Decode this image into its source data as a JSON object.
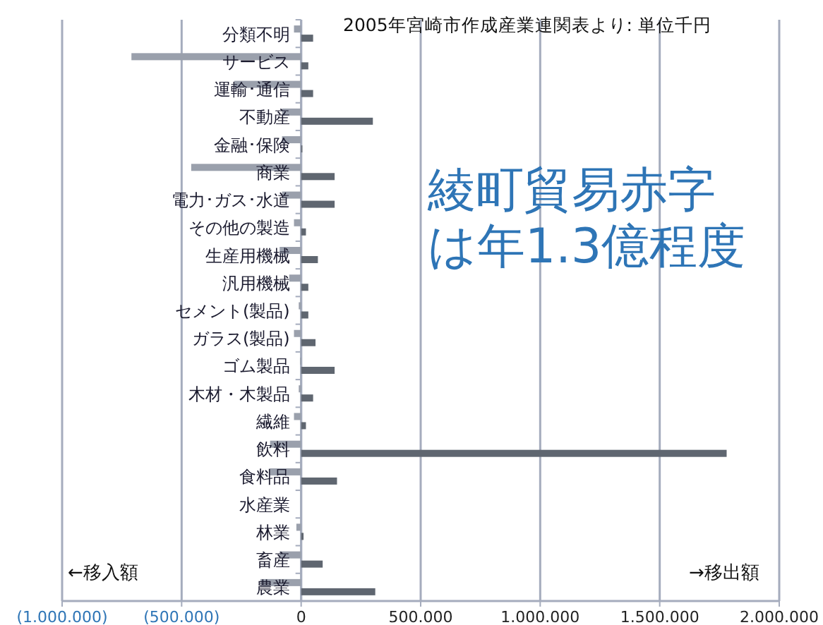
{
  "chart_data": {
    "type": "bar",
    "orientation": "horizontal",
    "title": "2005年宮崎市作成産業連関表より: 単位千円",
    "categories": [
      "分類不明",
      "サービス",
      "運輸･通信",
      "不動産",
      "金融･保険",
      "商業",
      "電力･ガス･水道",
      "その他の製造",
      "生産用機械",
      "汎用機械",
      "セメント(製品)",
      "ガラス(製品)",
      "ゴム製品",
      "木材・木製品",
      "繊維",
      "飲料",
      "食料品",
      "水産業",
      "林業",
      "畜産",
      "農業"
    ],
    "series": [
      {
        "color": "#9aa0ac",
        "values": [
          -30000,
          -710000,
          -280000,
          -80000,
          -80000,
          -460000,
          -80000,
          -30000,
          -90000,
          -50000,
          -10000,
          -30000,
          -5000,
          -10000,
          -30000,
          -130000,
          -130000,
          0,
          -20000,
          -90000,
          -170000
        ]
      },
      {
        "color": "#5f6670",
        "values": [
          50000,
          30000,
          50000,
          300000,
          5000,
          140000,
          140000,
          20000,
          70000,
          30000,
          30000,
          60000,
          140000,
          50000,
          20000,
          1780000,
          150000,
          0,
          10000,
          90000,
          310000
        ]
      }
    ],
    "xlim": [
      -1000000,
      2000000
    ],
    "xticks": [
      {
        "value": -1000000,
        "label": "(1.000.000)"
      },
      {
        "value": -500000,
        "label": "(500.000)"
      },
      0,
      {
        "value": 500000,
        "label": "500.000"
      },
      {
        "value": 1000000,
        "label": "1.000.000"
      },
      {
        "value": 1500000,
        "label": "1.500.000"
      },
      {
        "value": 2000000,
        "label": "2.000.000"
      }
    ],
    "grid": "x",
    "annotations": [
      "綾町貿易赤字",
      "は年1.3億程度",
      "←移入額",
      "→移出額"
    ]
  }
}
